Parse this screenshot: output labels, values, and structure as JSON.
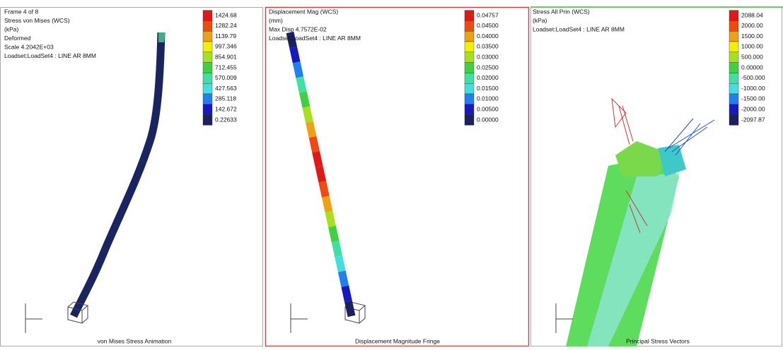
{
  "panels": [
    {
      "header": [
        "Frame 4 of 8",
        "Stress von Mises (WCS)",
        "(kPa)",
        "Deformed",
        "Scale  4.2042E+03",
        "Loadset:LoadSet4 :  LINE AR 8MM"
      ],
      "legend": [
        "1424.68",
        "1282.24",
        "1139.79",
        "997.346",
        "854.901",
        "712.455",
        "570.009",
        "427.563",
        "285.118",
        "142.672",
        "0.22633"
      ],
      "caption": "von Mises Stress Animation"
    },
    {
      "header": [
        "Displacement Mag (WCS)",
        "(mm)",
        "Max Disp  4.7572E-02",
        "Loadset:LoadSet4 :  LINE AR 8MM"
      ],
      "legend": [
        "0.04757",
        "0.04500",
        "0.04000",
        "0.03500",
        "0.03000",
        "0.02500",
        "0.02000",
        "0.01500",
        "0.01000",
        "0.00500",
        "0.00000"
      ],
      "caption": "Displacement Magnitude Fringe"
    },
    {
      "header": [
        "Stress All Prin (WCS)",
        "(kPa)",
        "Loadset:LoadSet4 :  LINE AR 8MM"
      ],
      "legend": [
        "2088.04",
        "2000.00",
        "1500.00",
        "1000.00",
        "500.000",
        "0.00000",
        "-500.000",
        "-1000.00",
        "-1500.00",
        "-2000.00",
        "-2097.87"
      ],
      "caption": "Principal Stress Vectors"
    }
  ]
}
